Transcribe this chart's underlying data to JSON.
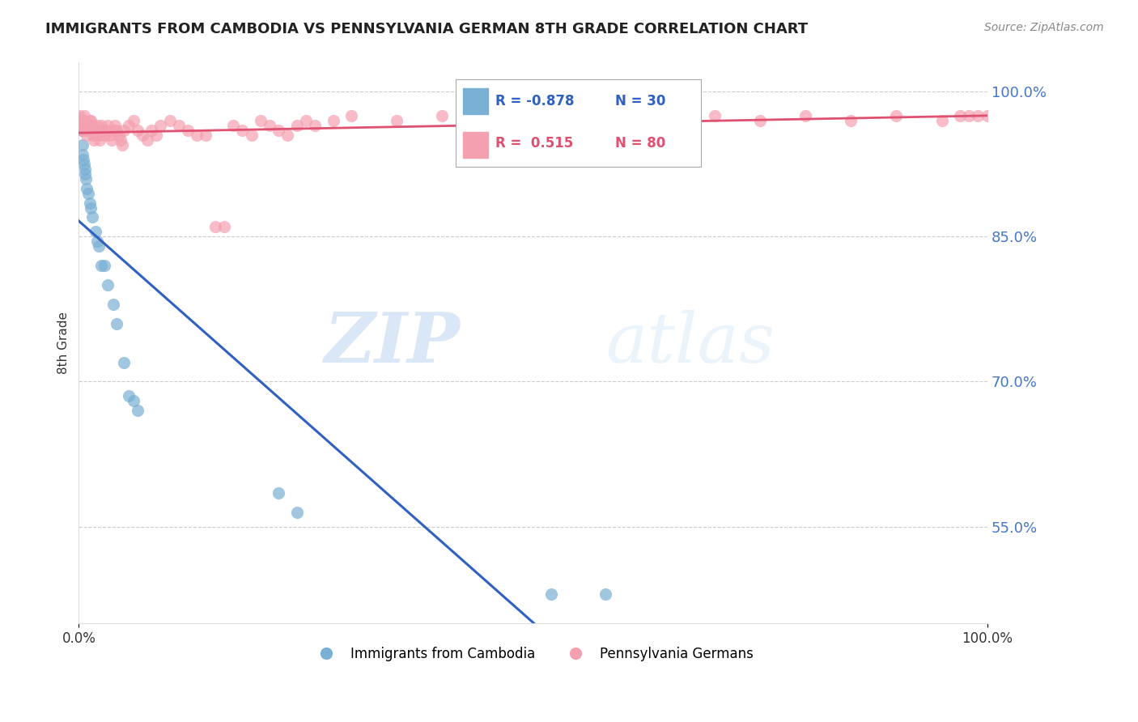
{
  "title": "IMMIGRANTS FROM CAMBODIA VS PENNSYLVANIA GERMAN 8TH GRADE CORRELATION CHART",
  "source": "Source: ZipAtlas.com",
  "ylabel": "8th Grade",
  "ytick_labels": [
    "100.0%",
    "85.0%",
    "70.0%",
    "55.0%"
  ],
  "ytick_values": [
    1.0,
    0.85,
    0.7,
    0.55
  ],
  "legend_blue_R": "-0.878",
  "legend_blue_N": "30",
  "legend_pink_R": "0.515",
  "legend_pink_N": "80",
  "legend_label_blue": "Immigrants from Cambodia",
  "legend_label_pink": "Pennsylvania Germans",
  "blue_color": "#7ab0d4",
  "pink_color": "#f4a0b0",
  "blue_line_color": "#3060c0",
  "pink_line_color": "#e05070",
  "watermark_zip": "ZIP",
  "watermark_atlas": "atlas",
  "blue_points_x": [
    0.002,
    0.003,
    0.004,
    0.004,
    0.005,
    0.006,
    0.007,
    0.007,
    0.008,
    0.009,
    0.01,
    0.012,
    0.013,
    0.015,
    0.018,
    0.02,
    0.022,
    0.025,
    0.028,
    0.032,
    0.038,
    0.042,
    0.05,
    0.055,
    0.06,
    0.065,
    0.22,
    0.24,
    0.52,
    0.58
  ],
  "blue_points_y": [
    0.97,
    0.96,
    0.935,
    0.945,
    0.93,
    0.925,
    0.92,
    0.915,
    0.91,
    0.9,
    0.895,
    0.885,
    0.88,
    0.87,
    0.855,
    0.845,
    0.84,
    0.82,
    0.82,
    0.8,
    0.78,
    0.76,
    0.72,
    0.685,
    0.68,
    0.67,
    0.585,
    0.565,
    0.48,
    0.48
  ],
  "pink_points_x": [
    0.001,
    0.002,
    0.003,
    0.004,
    0.005,
    0.006,
    0.007,
    0.008,
    0.009,
    0.01,
    0.012,
    0.013,
    0.014,
    0.015,
    0.016,
    0.017,
    0.018,
    0.019,
    0.02,
    0.021,
    0.022,
    0.023,
    0.025,
    0.027,
    0.028,
    0.03,
    0.032,
    0.034,
    0.036,
    0.038,
    0.04,
    0.042,
    0.044,
    0.046,
    0.048,
    0.05,
    0.055,
    0.06,
    0.065,
    0.07,
    0.075,
    0.08,
    0.085,
    0.09,
    0.1,
    0.11,
    0.12,
    0.13,
    0.14,
    0.15,
    0.16,
    0.17,
    0.18,
    0.19,
    0.2,
    0.21,
    0.22,
    0.23,
    0.24,
    0.25,
    0.26,
    0.28,
    0.3,
    0.35,
    0.4,
    0.45,
    0.5,
    0.55,
    0.6,
    0.65,
    0.7,
    0.75,
    0.8,
    0.85,
    0.9,
    0.95,
    0.97,
    0.98,
    0.99,
    1.0
  ],
  "pink_points_y": [
    0.975,
    0.97,
    0.965,
    0.96,
    0.97,
    0.975,
    0.965,
    0.96,
    0.955,
    0.965,
    0.97,
    0.97,
    0.965,
    0.96,
    0.955,
    0.95,
    0.96,
    0.955,
    0.965,
    0.96,
    0.955,
    0.95,
    0.965,
    0.96,
    0.955,
    0.96,
    0.965,
    0.955,
    0.95,
    0.96,
    0.965,
    0.96,
    0.955,
    0.95,
    0.945,
    0.96,
    0.965,
    0.97,
    0.96,
    0.955,
    0.95,
    0.96,
    0.955,
    0.965,
    0.97,
    0.965,
    0.96,
    0.955,
    0.955,
    0.86,
    0.86,
    0.965,
    0.96,
    0.955,
    0.97,
    0.965,
    0.96,
    0.955,
    0.965,
    0.97,
    0.965,
    0.97,
    0.975,
    0.97,
    0.975,
    0.97,
    0.975,
    0.97,
    0.975,
    0.97,
    0.975,
    0.97,
    0.975,
    0.97,
    0.975,
    0.97,
    0.975,
    0.975,
    0.975,
    0.975
  ]
}
